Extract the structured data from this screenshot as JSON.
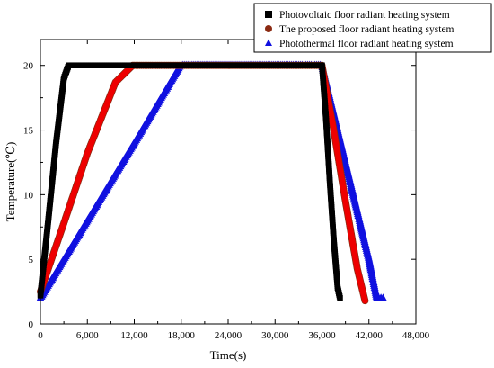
{
  "chart_data": {
    "type": "scatter",
    "xlabel": "Time(s)",
    "ylabel": "Temperature(℃)",
    "xlim": [
      0,
      48000
    ],
    "ylim": [
      0,
      22
    ],
    "x_ticks": [
      0,
      6000,
      12000,
      18000,
      24000,
      30000,
      36000,
      42000,
      48000
    ],
    "x_tick_labels": [
      "0",
      "6,000",
      "12,000",
      "18,000",
      "24,000",
      "30,000",
      "36,000",
      "42,000",
      "48,000"
    ],
    "y_ticks": [
      0,
      5,
      10,
      15,
      20
    ],
    "y_tick_labels": [
      "0",
      "5",
      "10",
      "15",
      "20"
    ],
    "grid": false,
    "legend_position": "top-right",
    "series": [
      {
        "name": "Photovoltaic floor radiant heating system",
        "marker": "square",
        "color": "#000000",
        "x": [
          0,
          1000,
          2000,
          3000,
          3600,
          6000,
          12000,
          18000,
          24000,
          30000,
          36000,
          36500,
          37000,
          37500,
          38000,
          38300
        ],
        "y": [
          2.2,
          8,
          14,
          19,
          20,
          20,
          20,
          20,
          20,
          20,
          20,
          16,
          11,
          6.5,
          2.8,
          2.0
        ]
      },
      {
        "name": "The proposed floor radiant heating system",
        "marker": "circle",
        "color": "#8b2a12",
        "x": [
          0,
          3000,
          6000,
          9600,
          11800,
          12000,
          18000,
          24000,
          30000,
          36000,
          37500,
          39000,
          40500,
          41500
        ],
        "y": [
          2.5,
          7.8,
          13.2,
          18.7,
          20,
          20,
          20,
          20,
          20,
          20,
          15,
          9.5,
          4.3,
          1.8
        ]
      },
      {
        "name": "Photothermal floor radiant heating system",
        "marker": "triangle",
        "color": "#1010e0",
        "x": [
          0,
          6000,
          12000,
          17800,
          18000,
          24000,
          30000,
          36000,
          38000,
          40000,
          42000,
          43000,
          43800
        ],
        "y": [
          2.0,
          8.0,
          14.0,
          19.9,
          20,
          20,
          20,
          20,
          15,
          10,
          5,
          2.0,
          2.0
        ]
      }
    ],
    "overlay_series": [
      {
        "color": "#ee0000",
        "x": [
          0,
          3000,
          6000,
          9600,
          11800,
          12000,
          18000,
          36000,
          37500,
          39000,
          40500,
          41500
        ],
        "y": [
          2.5,
          7.8,
          13.2,
          18.7,
          20,
          20,
          20,
          20,
          15,
          9.5,
          4.3,
          1.8
        ]
      }
    ]
  }
}
